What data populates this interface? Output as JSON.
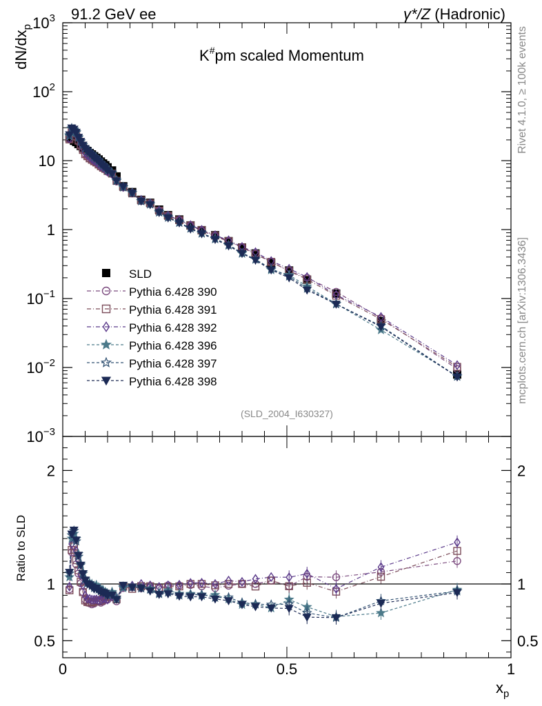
{
  "header": {
    "left": "91.2 GeV ee",
    "right_sym": "γ*/Z",
    "right_text": "(Hadronic)"
  },
  "side_labels": {
    "top": "Rivet 4.1.0, ≥ 100k events",
    "bottom": "mcplots.cern.ch [arXiv:1306.3436]"
  },
  "chart_data": [
    {
      "type": "line",
      "panel": "main",
      "title_base": "K",
      "title_sup": "#",
      "title_rest": "pm scaled Momentum",
      "ylabel_base": "dN/dx",
      "ylabel_sub": "p",
      "yscale": "log",
      "xlim": [
        0,
        1
      ],
      "ylim": [
        0.001,
        1000
      ],
      "y_ticks": [
        {
          "value": 1000,
          "base": "10",
          "exp": "3"
        },
        {
          "value": 100,
          "base": "10",
          "exp": "2"
        },
        {
          "value": 10,
          "base": "10",
          "exp": ""
        },
        {
          "value": 1,
          "base": "1",
          "exp": ""
        },
        {
          "value": 0.1,
          "base": "10",
          "exp": "−1"
        },
        {
          "value": 0.01,
          "base": "10",
          "exp": "−2"
        },
        {
          "value": 0.001,
          "base": "10",
          "exp": "−3"
        }
      ],
      "watermark": "(SLD_2004_I630327)",
      "x": [
        0.015,
        0.02,
        0.025,
        0.03,
        0.035,
        0.04,
        0.045,
        0.05,
        0.055,
        0.06,
        0.065,
        0.07,
        0.075,
        0.08,
        0.085,
        0.09,
        0.095,
        0.1,
        0.11,
        0.12,
        0.135,
        0.155,
        0.175,
        0.195,
        0.215,
        0.235,
        0.26,
        0.285,
        0.31,
        0.34,
        0.37,
        0.4,
        0.43,
        0.465,
        0.505,
        0.545,
        0.61,
        0.71,
        0.88
      ],
      "reference": {
        "name": "SLD",
        "values": [
          21.5,
          20.7,
          19.4,
          18.6,
          17.4,
          16.3,
          15.4,
          14.5,
          13.8,
          12.9,
          12.3,
          11.6,
          11.0,
          10.4,
          9.7,
          9.1,
          8.6,
          8.0,
          7.2,
          5.9,
          4.25,
          3.5,
          2.7,
          2.45,
          1.95,
          1.62,
          1.4,
          1.15,
          0.98,
          0.83,
          0.68,
          0.55,
          0.45,
          0.33,
          0.255,
          0.188,
          0.118,
          0.047,
          0.0079
        ]
      },
      "series": [
        {
          "name": "Pythia 6.428 390",
          "color": "#7b4a7e",
          "dash": "6,3,1,3",
          "marker": "circle-open",
          "values": [
            20.5,
            26.5,
            24.8,
            21.8,
            19.0,
            16.4,
            14.3,
            12.5,
            11.6,
            10.7,
            10.1,
            9.6,
            9.3,
            8.8,
            8.1,
            7.7,
            7.4,
            6.9,
            6.4,
            5.0,
            4.1,
            3.4,
            2.6,
            2.37,
            1.87,
            1.6,
            1.38,
            1.14,
            0.96,
            0.8,
            0.67,
            0.55,
            0.45,
            0.34,
            0.25,
            0.2,
            0.125,
            0.052,
            0.0095
          ]
        },
        {
          "name": "Pythia 6.428 391",
          "color": "#7a4a57",
          "dash": "6,3,1,3",
          "marker": "square-open",
          "values": [
            20.3,
            26.9,
            25.8,
            22.5,
            19.5,
            16.6,
            14.3,
            12.4,
            11.6,
            10.8,
            10.3,
            9.8,
            9.4,
            8.8,
            8.3,
            7.9,
            7.6,
            7.1,
            6.5,
            5.1,
            4.15,
            3.35,
            2.65,
            2.4,
            1.88,
            1.58,
            1.37,
            1.15,
            0.98,
            0.82,
            0.68,
            0.55,
            0.44,
            0.34,
            0.25,
            0.19,
            0.11,
            0.05,
            0.0102
          ]
        },
        {
          "name": "Pythia 6.428 392",
          "color": "#5b3a8a",
          "dash": "6,3,1,3",
          "marker": "diamond-open",
          "values": [
            21.0,
            28.0,
            27.0,
            24.0,
            21.0,
            17.6,
            15.2,
            13.0,
            12.0,
            11.2,
            10.6,
            10.0,
            9.5,
            8.9,
            8.3,
            7.9,
            7.5,
            6.9,
            6.4,
            5.2,
            4.15,
            3.45,
            2.7,
            2.42,
            1.9,
            1.6,
            1.39,
            1.16,
            0.99,
            0.83,
            0.7,
            0.56,
            0.47,
            0.35,
            0.27,
            0.205,
            0.113,
            0.054,
            0.0108
          ]
        },
        {
          "name": "Pythia 6.428 396",
          "color": "#4c7a8a",
          "dash": "4,3",
          "marker": "star-filled",
          "values": [
            22.8,
            29.0,
            28.0,
            26.0,
            22.0,
            19.2,
            17.0,
            15.2,
            14.0,
            13.0,
            12.3,
            11.4,
            10.9,
            10.1,
            9.2,
            8.6,
            8.0,
            7.3,
            6.7,
            5.2,
            4.1,
            3.4,
            2.6,
            2.35,
            1.8,
            1.53,
            1.28,
            1.05,
            0.88,
            0.75,
            0.59,
            0.45,
            0.37,
            0.26,
            0.22,
            0.15,
            0.084,
            0.035,
            0.0075
          ]
        },
        {
          "name": "Pythia 6.428 397",
          "color": "#2e4f70",
          "dash": "4,3",
          "marker": "star-open",
          "values": [
            23.5,
            29.6,
            28.5,
            25.6,
            21.6,
            19.0,
            16.8,
            15.1,
            13.9,
            12.9,
            12.1,
            11.2,
            10.6,
            9.9,
            9.1,
            8.5,
            7.9,
            7.2,
            6.6,
            5.1,
            4.15,
            3.4,
            2.6,
            2.33,
            1.78,
            1.5,
            1.26,
            1.04,
            0.89,
            0.73,
            0.6,
            0.46,
            0.37,
            0.27,
            0.21,
            0.14,
            0.083,
            0.04,
            0.0074
          ]
        },
        {
          "name": "Pythia 6.428 398",
          "color": "#1c2a55",
          "dash": "4,3",
          "marker": "triangle-down-filled",
          "values": [
            23.7,
            29.8,
            28.6,
            25.8,
            21.8,
            19.0,
            16.8,
            15.0,
            13.8,
            12.8,
            12.0,
            11.1,
            10.6,
            9.8,
            9.0,
            8.4,
            7.9,
            7.2,
            6.5,
            5.1,
            4.2,
            3.4,
            2.6,
            2.3,
            1.77,
            1.48,
            1.25,
            1.02,
            0.87,
            0.72,
            0.58,
            0.45,
            0.36,
            0.26,
            0.2,
            0.133,
            0.083,
            0.039,
            0.0073
          ]
        }
      ]
    },
    {
      "type": "line",
      "panel": "ratio",
      "ylabel": "Ratio to SLD",
      "xlabel_base": "x",
      "xlabel_sub": "p",
      "xlim": [
        0,
        1
      ],
      "ylim": [
        0.35,
        2.3
      ],
      "y_tick_labels": [
        "2",
        "1",
        "0.5"
      ],
      "y_tick_values": [
        2,
        1,
        0.5
      ],
      "x_tick_labels": [
        "0",
        "0.5",
        "1"
      ],
      "x_tick_values": [
        0,
        0.5,
        1
      ],
      "reference_line": 1.0,
      "legend_position": "middle-left of main panel"
    }
  ]
}
